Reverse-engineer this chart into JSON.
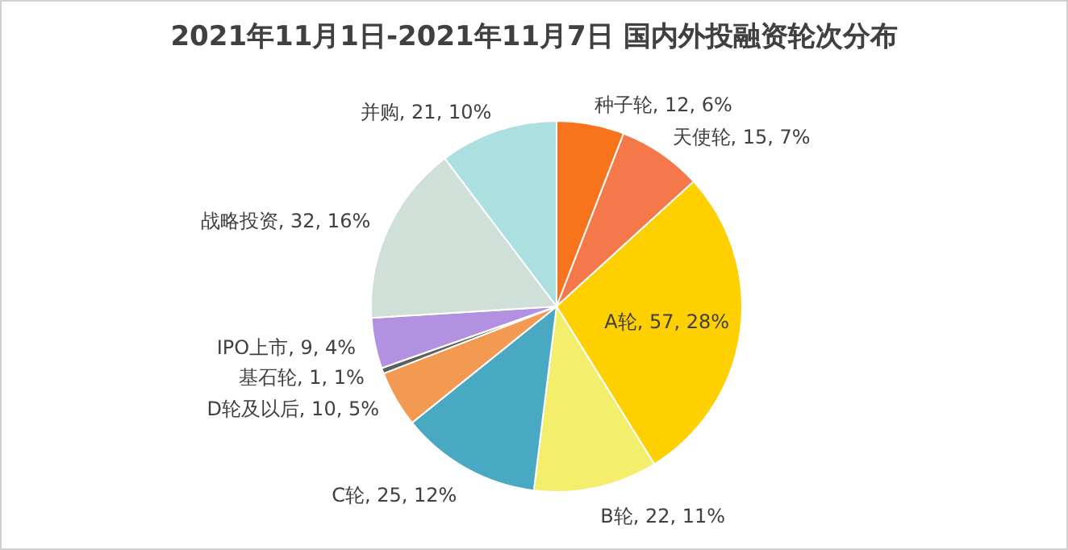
{
  "chart_data": {
    "type": "pie",
    "title": "2021年11月1日-2021年11月7日 国内外投融资轮次分布",
    "categories": [
      "种子轮",
      "天使轮",
      "A轮",
      "B轮",
      "C轮",
      "D轮及以后",
      "基石轮",
      "IPO上市",
      "战略投资",
      "并购"
    ],
    "values": [
      12,
      15,
      57,
      22,
      25,
      10,
      1,
      9,
      32,
      21
    ],
    "value_labels": [
      "12, 6%",
      "15, 7%",
      "57, 28%",
      "22, 11%",
      "25, 12%",
      "10, 5%",
      "1, 1%",
      "9, 4%",
      "32, 16%",
      "21, 10%"
    ],
    "colors": [
      "#f7731c",
      "#f4784a",
      "#ffd000",
      "#f3ee6c",
      "#49a9c3",
      "#f29a52",
      "#5e5e5e",
      "#b291e0",
      "#cfe0d8",
      "#abdfe0"
    ]
  }
}
